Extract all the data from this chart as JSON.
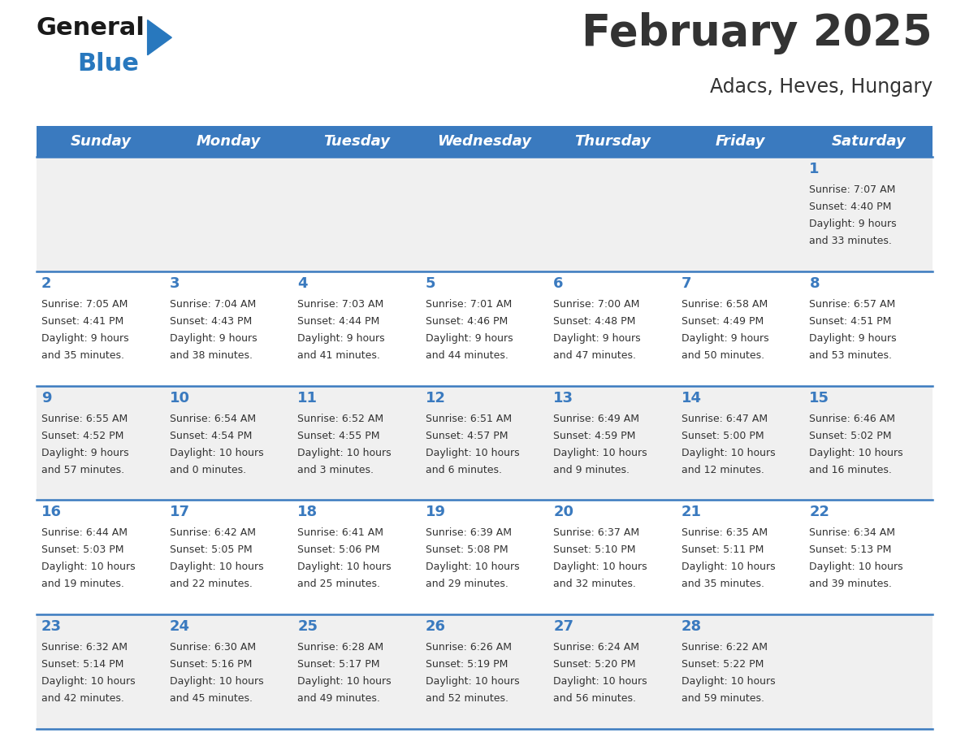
{
  "title": "February 2025",
  "subtitle": "Adacs, Heves, Hungary",
  "header_bg": "#3a7abf",
  "header_text_color": "#ffffff",
  "weekdays": [
    "Sunday",
    "Monday",
    "Tuesday",
    "Wednesday",
    "Thursday",
    "Friday",
    "Saturday"
  ],
  "row_bg_odd": "#f0f0f0",
  "row_bg_even": "#ffffff",
  "day_number_color": "#3a7abf",
  "text_color": "#333333",
  "separator_color": "#3a7abf",
  "logo_general_color": "#1a1a1a",
  "logo_blue_color": "#2878be",
  "days": [
    {
      "day": 1,
      "col": 6,
      "row": 0,
      "sunrise": "7:07 AM",
      "sunset": "4:40 PM",
      "daylight": "9 hours and 33 minutes."
    },
    {
      "day": 2,
      "col": 0,
      "row": 1,
      "sunrise": "7:05 AM",
      "sunset": "4:41 PM",
      "daylight": "9 hours and 35 minutes."
    },
    {
      "day": 3,
      "col": 1,
      "row": 1,
      "sunrise": "7:04 AM",
      "sunset": "4:43 PM",
      "daylight": "9 hours and 38 minutes."
    },
    {
      "day": 4,
      "col": 2,
      "row": 1,
      "sunrise": "7:03 AM",
      "sunset": "4:44 PM",
      "daylight": "9 hours and 41 minutes."
    },
    {
      "day": 5,
      "col": 3,
      "row": 1,
      "sunrise": "7:01 AM",
      "sunset": "4:46 PM",
      "daylight": "9 hours and 44 minutes."
    },
    {
      "day": 6,
      "col": 4,
      "row": 1,
      "sunrise": "7:00 AM",
      "sunset": "4:48 PM",
      "daylight": "9 hours and 47 minutes."
    },
    {
      "day": 7,
      "col": 5,
      "row": 1,
      "sunrise": "6:58 AM",
      "sunset": "4:49 PM",
      "daylight": "9 hours and 50 minutes."
    },
    {
      "day": 8,
      "col": 6,
      "row": 1,
      "sunrise": "6:57 AM",
      "sunset": "4:51 PM",
      "daylight": "9 hours and 53 minutes."
    },
    {
      "day": 9,
      "col": 0,
      "row": 2,
      "sunrise": "6:55 AM",
      "sunset": "4:52 PM",
      "daylight": "9 hours and 57 minutes."
    },
    {
      "day": 10,
      "col": 1,
      "row": 2,
      "sunrise": "6:54 AM",
      "sunset": "4:54 PM",
      "daylight": "10 hours and 0 minutes."
    },
    {
      "day": 11,
      "col": 2,
      "row": 2,
      "sunrise": "6:52 AM",
      "sunset": "4:55 PM",
      "daylight": "10 hours and 3 minutes."
    },
    {
      "day": 12,
      "col": 3,
      "row": 2,
      "sunrise": "6:51 AM",
      "sunset": "4:57 PM",
      "daylight": "10 hours and 6 minutes."
    },
    {
      "day": 13,
      "col": 4,
      "row": 2,
      "sunrise": "6:49 AM",
      "sunset": "4:59 PM",
      "daylight": "10 hours and 9 minutes."
    },
    {
      "day": 14,
      "col": 5,
      "row": 2,
      "sunrise": "6:47 AM",
      "sunset": "5:00 PM",
      "daylight": "10 hours and 12 minutes."
    },
    {
      "day": 15,
      "col": 6,
      "row": 2,
      "sunrise": "6:46 AM",
      "sunset": "5:02 PM",
      "daylight": "10 hours and 16 minutes."
    },
    {
      "day": 16,
      "col": 0,
      "row": 3,
      "sunrise": "6:44 AM",
      "sunset": "5:03 PM",
      "daylight": "10 hours and 19 minutes."
    },
    {
      "day": 17,
      "col": 1,
      "row": 3,
      "sunrise": "6:42 AM",
      "sunset": "5:05 PM",
      "daylight": "10 hours and 22 minutes."
    },
    {
      "day": 18,
      "col": 2,
      "row": 3,
      "sunrise": "6:41 AM",
      "sunset": "5:06 PM",
      "daylight": "10 hours and 25 minutes."
    },
    {
      "day": 19,
      "col": 3,
      "row": 3,
      "sunrise": "6:39 AM",
      "sunset": "5:08 PM",
      "daylight": "10 hours and 29 minutes."
    },
    {
      "day": 20,
      "col": 4,
      "row": 3,
      "sunrise": "6:37 AM",
      "sunset": "5:10 PM",
      "daylight": "10 hours and 32 minutes."
    },
    {
      "day": 21,
      "col": 5,
      "row": 3,
      "sunrise": "6:35 AM",
      "sunset": "5:11 PM",
      "daylight": "10 hours and 35 minutes."
    },
    {
      "day": 22,
      "col": 6,
      "row": 3,
      "sunrise": "6:34 AM",
      "sunset": "5:13 PM",
      "daylight": "10 hours and 39 minutes."
    },
    {
      "day": 23,
      "col": 0,
      "row": 4,
      "sunrise": "6:32 AM",
      "sunset": "5:14 PM",
      "daylight": "10 hours and 42 minutes."
    },
    {
      "day": 24,
      "col": 1,
      "row": 4,
      "sunrise": "6:30 AM",
      "sunset": "5:16 PM",
      "daylight": "10 hours and 45 minutes."
    },
    {
      "day": 25,
      "col": 2,
      "row": 4,
      "sunrise": "6:28 AM",
      "sunset": "5:17 PM",
      "daylight": "10 hours and 49 minutes."
    },
    {
      "day": 26,
      "col": 3,
      "row": 4,
      "sunrise": "6:26 AM",
      "sunset": "5:19 PM",
      "daylight": "10 hours and 52 minutes."
    },
    {
      "day": 27,
      "col": 4,
      "row": 4,
      "sunrise": "6:24 AM",
      "sunset": "5:20 PM",
      "daylight": "10 hours and 56 minutes."
    },
    {
      "day": 28,
      "col": 5,
      "row": 4,
      "sunrise": "6:22 AM",
      "sunset": "5:22 PM",
      "daylight": "10 hours and 59 minutes."
    }
  ]
}
